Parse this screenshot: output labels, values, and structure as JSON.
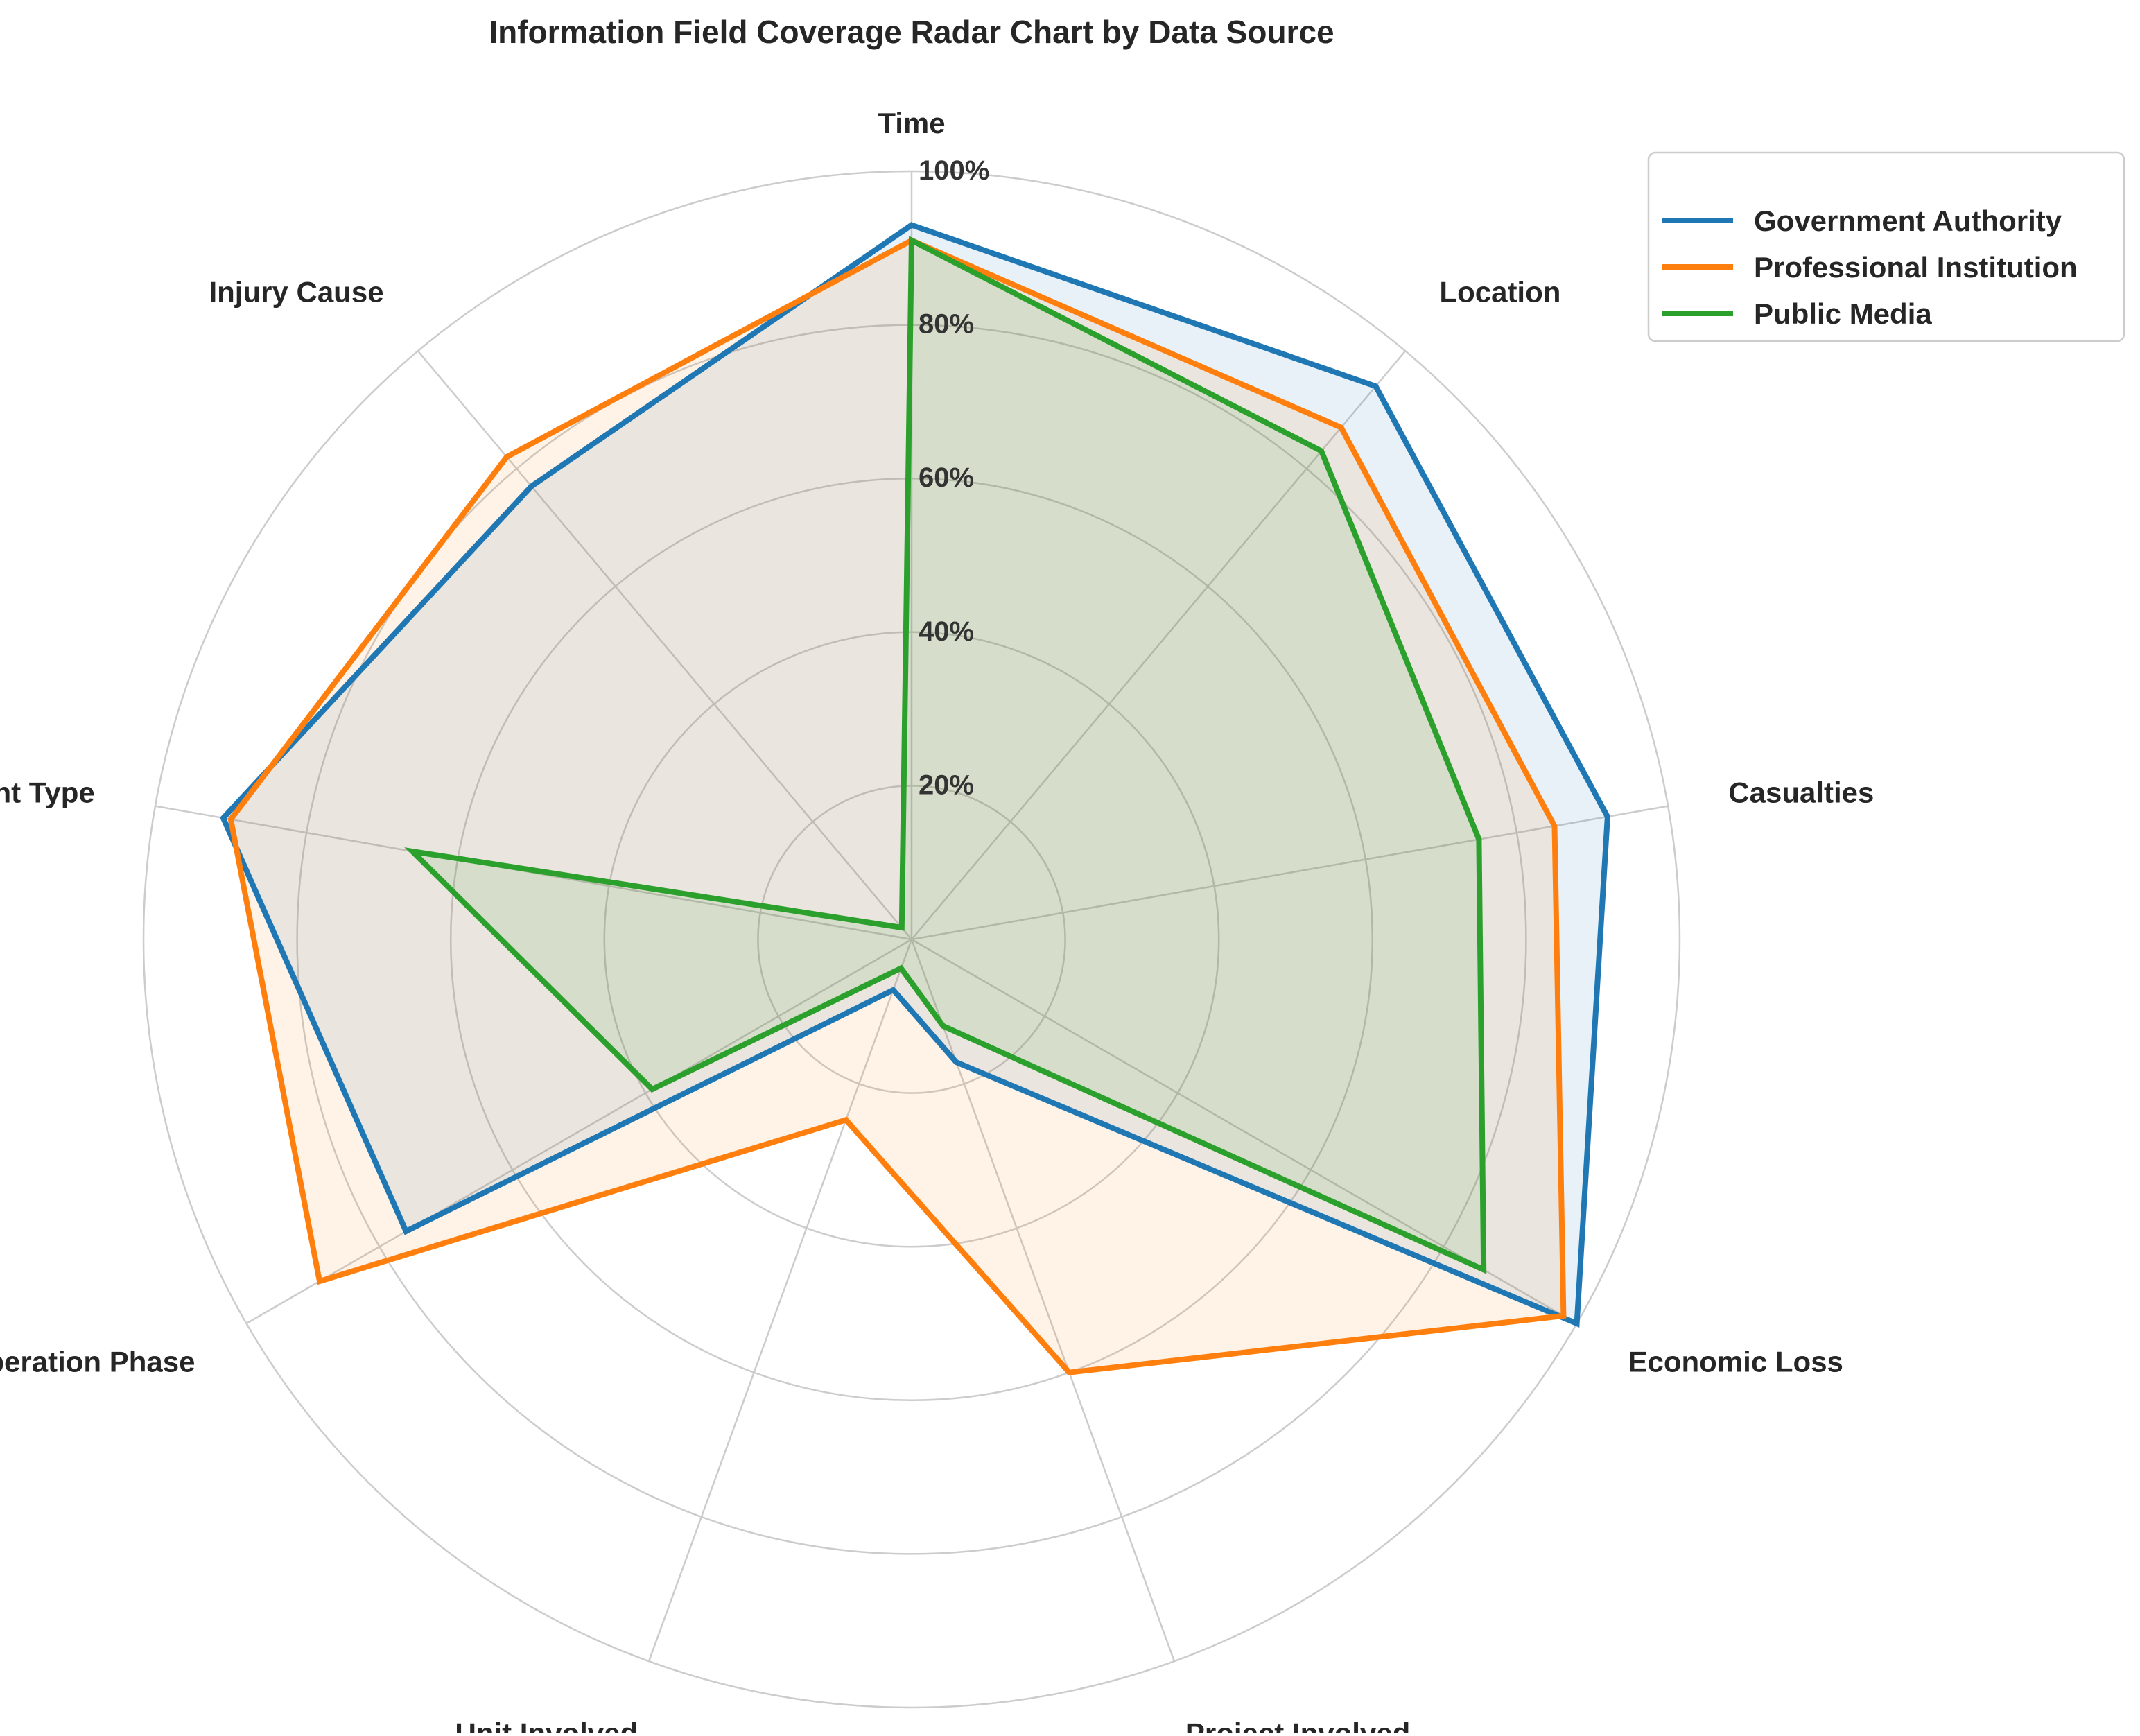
{
  "chart_data": {
    "type": "radar",
    "title": "Information Field Coverage Radar Chart by Data Source",
    "categories": [
      "Time",
      "Location",
      "Casualties",
      "Economic Loss",
      "Project Involved",
      "Unit Involved",
      "Operation Phase",
      "Accident Type",
      "Injury Cause"
    ],
    "r_ticks": [
      20,
      40,
      60,
      80,
      100
    ],
    "r_tick_labels": [
      "20%",
      "40%",
      "60%",
      "80%",
      "100%"
    ],
    "rlim": [
      0,
      100
    ],
    "grid": true,
    "legend_position": "top-right",
    "series": [
      {
        "name": "Government Authority",
        "color": "#1f77b4",
        "values": [
          93,
          94,
          92,
          100,
          17,
          7,
          76,
          91,
          77
        ]
      },
      {
        "name": "Professional Institution",
        "color": "#ff7f0e",
        "values": [
          91,
          87,
          85,
          98,
          60,
          25,
          89,
          90,
          82
        ]
      },
      {
        "name": "Public Media",
        "color": "#2ca02c",
        "values": [
          91,
          83,
          75,
          86,
          12,
          4,
          39,
          66,
          2
        ]
      }
    ]
  }
}
